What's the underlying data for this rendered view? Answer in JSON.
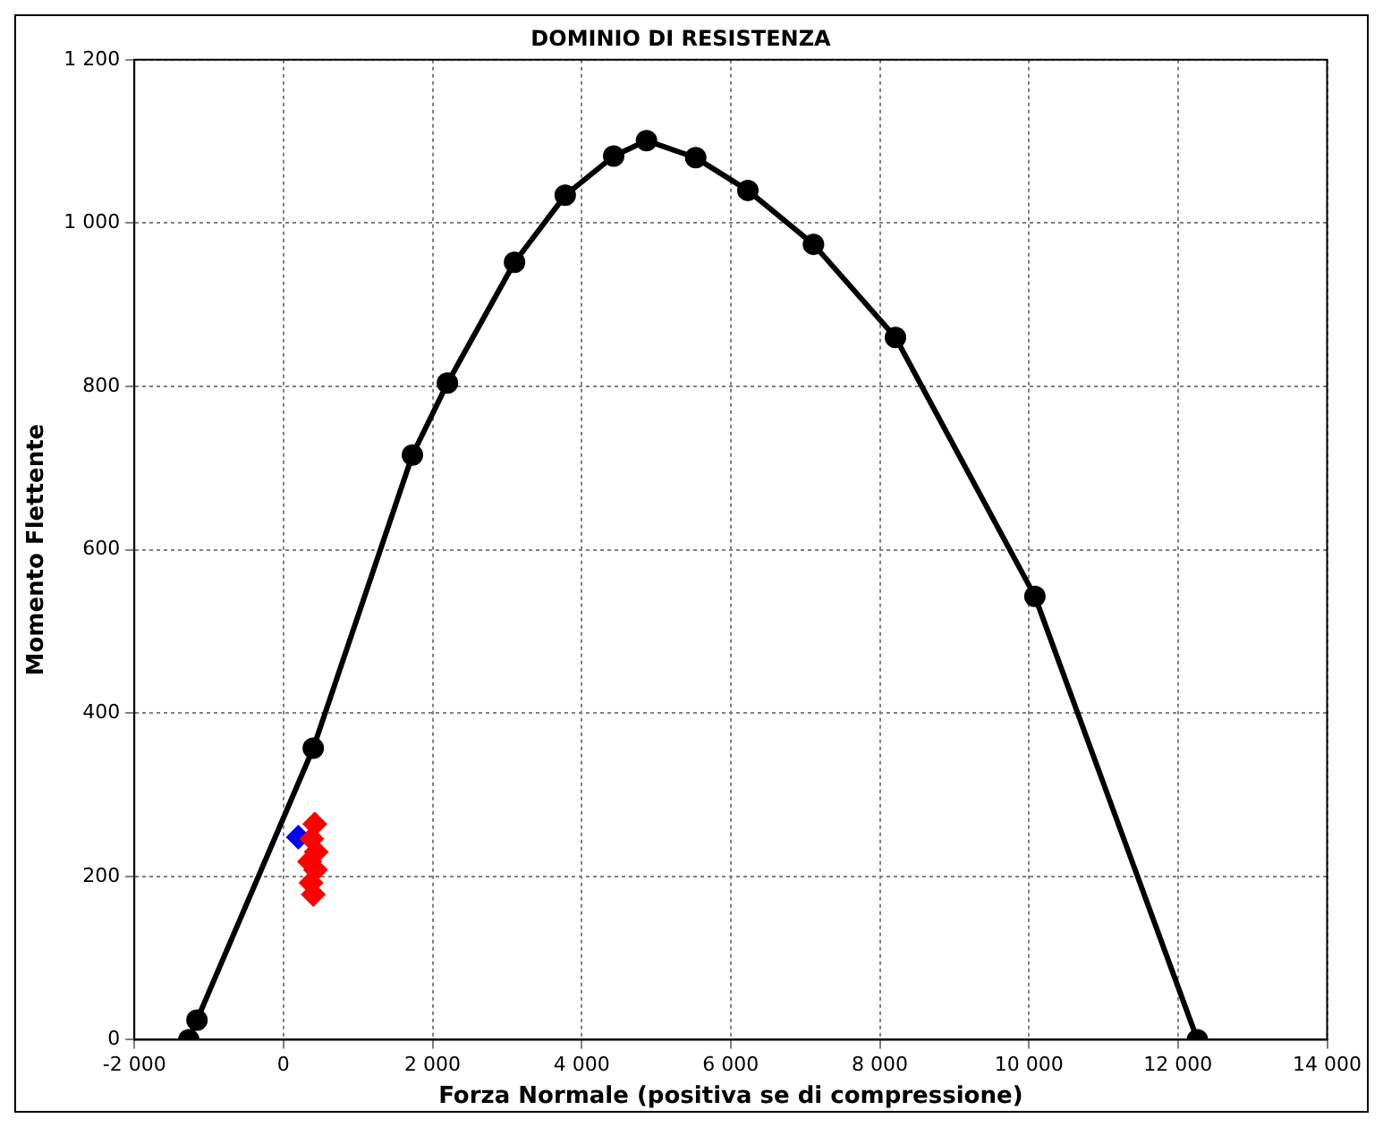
{
  "chart_data": {
    "type": "line",
    "title": "DOMINIO DI RESISTENZA",
    "xlabel": "Forza Normale (positiva se di compressione)",
    "ylabel": "Momento Flettente",
    "series": [
      {
        "type": "line",
        "color": "#000000",
        "marker": "circle",
        "x": [
          -1270,
          -1160,
          400,
          1730,
          2200,
          3100,
          3780,
          4430,
          4870,
          5530,
          6230,
          7110,
          8210,
          10080,
          12260
        ],
        "values": [
          0,
          24,
          357,
          716,
          804,
          952,
          1034,
          1082,
          1101,
          1080,
          1040,
          974,
          860,
          543,
          0
        ]
      },
      {
        "type": "scatter",
        "color": "#ff0000",
        "marker": "diamond",
        "x": [
          420,
          380,
          440,
          350,
          430,
          370,
          400
        ],
        "values": [
          264,
          246,
          230,
          218,
          208,
          192,
          178
        ]
      },
      {
        "type": "scatter",
        "color": "#0000ff",
        "marker": "diamond",
        "x": [
          200
        ],
        "values": [
          248
        ]
      }
    ],
    "xlim": [
      -2000,
      14000
    ],
    "xticks": [
      {
        "value": -2000,
        "label": "-2 000"
      },
      0,
      {
        "value": 2000,
        "label": "2 000"
      },
      {
        "value": 4000,
        "label": "4 000"
      },
      {
        "value": 6000,
        "label": "6 000"
      },
      {
        "value": 8000,
        "label": "8 000"
      },
      {
        "value": 10000,
        "label": "10 000"
      },
      {
        "value": 12000,
        "label": "12 000"
      },
      {
        "value": 14000,
        "label": "14 000"
      }
    ],
    "ylim": [
      0,
      1200
    ],
    "yticks": [
      0,
      200,
      400,
      600,
      800,
      {
        "value": 1000,
        "label": "1 000"
      },
      {
        "value": 1200,
        "label": "1 200"
      }
    ],
    "grid": true,
    "legend": false
  }
}
